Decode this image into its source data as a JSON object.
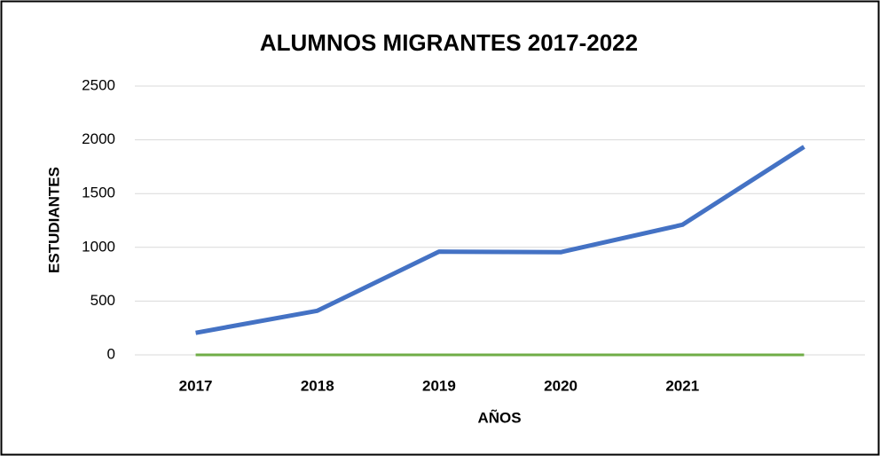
{
  "chart_data": {
    "type": "line",
    "title": "ALUMNOS MIGRANTES  2017-2022",
    "x_label": "AÑOS",
    "y_label": "ESTUDIANTES",
    "categories": [
      "2017",
      "2018",
      "2019",
      "2020",
      "2021",
      null
    ],
    "series": [
      {
        "color": "#4472c4",
        "values": [
          205,
          410,
          960,
          955,
          1210,
          1935
        ]
      },
      {
        "color": "#70ad47",
        "values": [
          0,
          0,
          0,
          0,
          0,
          0
        ]
      }
    ],
    "ylim": [
      0,
      2500
    ],
    "yticks": [
      0,
      500,
      1000,
      1500,
      2000,
      2500
    ],
    "grid": true
  }
}
